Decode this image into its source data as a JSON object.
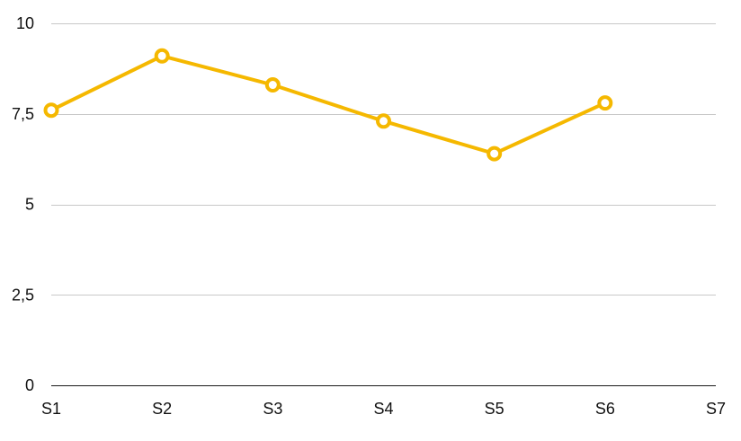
{
  "chart_data": {
    "type": "line",
    "title": "",
    "xlabel": "",
    "ylabel": "",
    "categories": [
      "S1",
      "S2",
      "S3",
      "S4",
      "S5",
      "S6",
      "S7"
    ],
    "series": [
      {
        "values": [
          7.6,
          9.1,
          8.3,
          7.3,
          6.4,
          7.8,
          null
        ],
        "color": "#f5b800"
      }
    ],
    "ylim": [
      0,
      10
    ],
    "yticks": [
      0,
      2.5,
      5,
      7.5,
      10
    ],
    "ytick_labels": [
      "0",
      "2,5",
      "5",
      "7,5",
      "10"
    ],
    "grid": true,
    "legend": "none"
  }
}
